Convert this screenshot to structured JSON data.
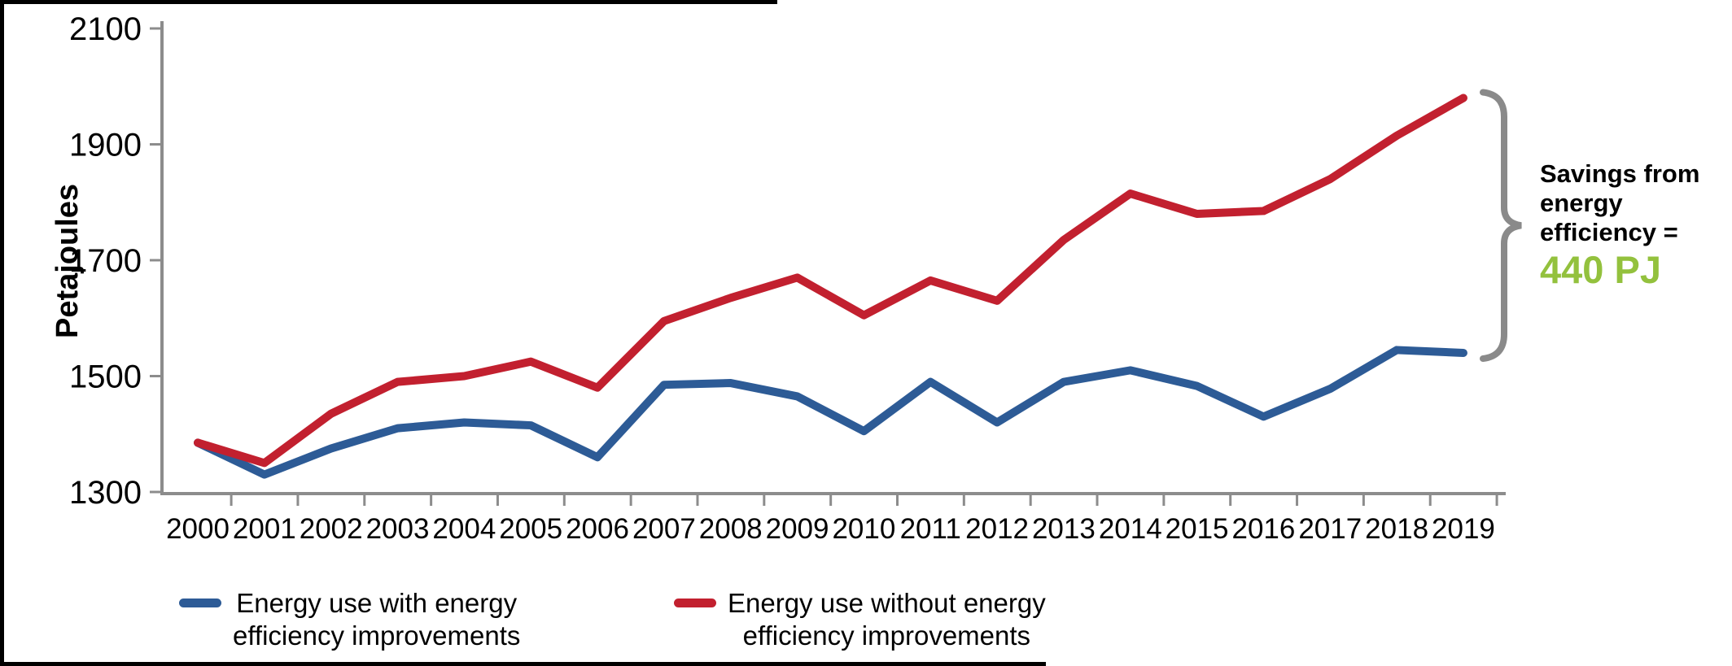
{
  "chart_data": {
    "type": "line",
    "title": "",
    "xlabel": "",
    "ylabel": "Petajoules",
    "ylim": [
      1300,
      2100
    ],
    "yticks": [
      2100,
      1900,
      1700,
      1500,
      1300
    ],
    "x": [
      2000,
      2001,
      2002,
      2003,
      2004,
      2005,
      2006,
      2007,
      2008,
      2009,
      2010,
      2011,
      2012,
      2013,
      2014,
      2015,
      2016,
      2017,
      2018,
      2019
    ],
    "series": [
      {
        "name": "Energy use with energy efficiency improvements",
        "color": "#2D5B96",
        "values": [
          1385,
          1330,
          1375,
          1410,
          1420,
          1415,
          1360,
          1485,
          1488,
          1465,
          1405,
          1490,
          1420,
          1490,
          1510,
          1483,
          1430,
          1478,
          1545,
          1540
        ]
      },
      {
        "name": "Energy use without energy efficiency improvements",
        "color": "#C2202F",
        "values": [
          1385,
          1350,
          1435,
          1490,
          1500,
          1525,
          1480,
          1595,
          1635,
          1670,
          1605,
          1665,
          1630,
          1735,
          1815,
          1780,
          1785,
          1840,
          1915,
          1980
        ]
      }
    ],
    "grid": false,
    "legend_position": "bottom",
    "axis_color": "#8C8C8C"
  },
  "legend": [
    {
      "line1": "Energy use with energy",
      "line2": "efficiency improvements"
    },
    {
      "line1": "Energy use without energy",
      "line2": "efficiency improvements"
    }
  ],
  "annotation": {
    "line1": "Savings from",
    "line2": "energy",
    "line3": "efficiency =",
    "value": "440 PJ",
    "value_color": "#93C13D",
    "brace_color": "#8A8A8A"
  }
}
